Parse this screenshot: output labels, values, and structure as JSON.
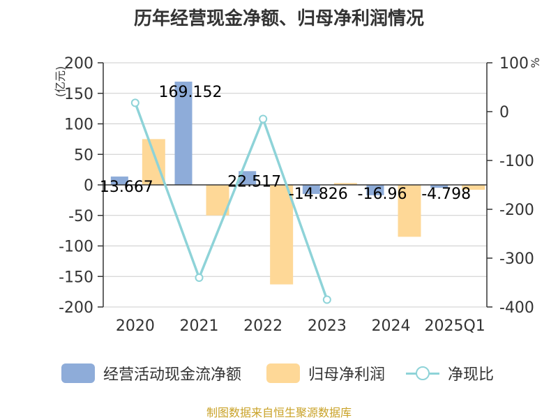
{
  "chart_data": {
    "type": "bar+line",
    "title": "历年经营现金净额、归母净利润情况",
    "categories": [
      "2020",
      "2021",
      "2022",
      "2023",
      "2024",
      "2025Q1"
    ],
    "series": [
      {
        "name": "经营活动现金流净额",
        "type": "bar",
        "axis": "left",
        "color": "#8eacd9",
        "values": [
          13.667,
          169.152,
          22.517,
          -14.826,
          -16.96,
          -4.798
        ],
        "labels": [
          "13.667",
          "169.152",
          "22.517",
          "-14.826",
          "-16.96",
          "-4.798"
        ]
      },
      {
        "name": "归母净利润",
        "type": "bar",
        "axis": "left",
        "color": "#fed897",
        "values": [
          75,
          -50,
          -163,
          3,
          -85,
          -8
        ]
      },
      {
        "name": "净现比",
        "type": "line",
        "axis": "right",
        "color": "#8ed3d8",
        "values": [
          18,
          -340,
          -15,
          -385,
          null,
          null
        ]
      }
    ],
    "yleft": {
      "label": "亿元",
      "min": -200,
      "max": 200,
      "ticks": [
        "200",
        "150",
        "100",
        "50",
        "0",
        "-50",
        "-100",
        "-150",
        "-200"
      ]
    },
    "yright": {
      "label": "%",
      "min": -400,
      "max": 100,
      "ticks": [
        "100",
        "0",
        "-100",
        "-200",
        "-300",
        "-400"
      ]
    },
    "grid": true,
    "legend_position": "bottom",
    "source": "制图数据来自恒生聚源数据库"
  }
}
